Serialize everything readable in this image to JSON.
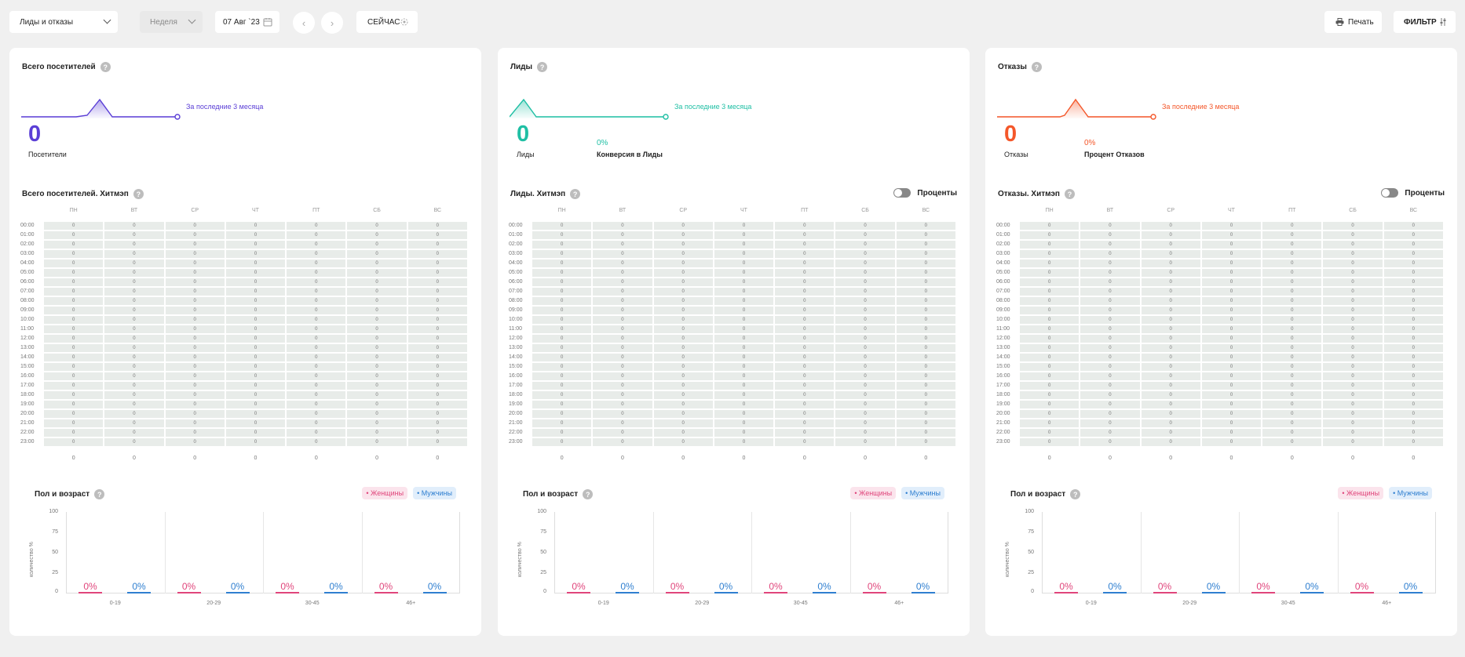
{
  "toolbar": {
    "report_select": "Лиды и отказы",
    "period_select": "Неделя",
    "date": "07 Авг `23",
    "prev": "‹",
    "next": "›",
    "now": "СЕЙЧАС",
    "print": "Печать",
    "filter": "ФИЛЬТР"
  },
  "days": [
    "ПН",
    "ВТ",
    "СР",
    "ЧТ",
    "ПТ",
    "СБ",
    "ВС"
  ],
  "hours": [
    "00:00",
    "01:00",
    "02:00",
    "03:00",
    "04:00",
    "05:00",
    "06:00",
    "07:00",
    "08:00",
    "09:00",
    "10:00",
    "11:00",
    "12:00",
    "13:00",
    "14:00",
    "15:00",
    "16:00",
    "17:00",
    "18:00",
    "19:00",
    "20:00",
    "21:00",
    "22:00",
    "23:00"
  ],
  "cell_value": "0",
  "day_totals": [
    "0",
    "0",
    "0",
    "0",
    "0",
    "0",
    "0"
  ],
  "sex_age": {
    "title": "Пол и возраст",
    "legend_female": "• Женщины",
    "legend_male": "• Мужчины",
    "ylabel": "количество %",
    "yticks": [
      "100",
      "75",
      "50",
      "25",
      "0"
    ],
    "groups": [
      "0-19",
      "20-29",
      "30-45",
      "46+"
    ],
    "female_values": [
      "0%",
      "0%",
      "0%",
      "0%"
    ],
    "male_values": [
      "0%",
      "0%",
      "0%",
      "0%"
    ]
  },
  "panels": [
    {
      "title": "Всего посетителей",
      "accent": "#5b3fd6",
      "spark_label": "За последние 3 месяца",
      "big": "0",
      "big_label": "Посетители",
      "pct": "",
      "pct_label": "",
      "heatmap_title": "Всего посетителей. Хитмэп",
      "toggle_label": ""
    },
    {
      "title": "Лиды",
      "accent": "#1fbfa4",
      "spark_label": "За последние 3 месяца",
      "big": "0",
      "big_label": "Лиды",
      "pct": "0%",
      "pct_label": "Конверсия в Лиды",
      "heatmap_title": "Лиды. Хитмэп",
      "toggle_label": "Проценты"
    },
    {
      "title": "Отказы",
      "accent": "#f4572a",
      "spark_label": "За последние 3 месяца",
      "big": "0",
      "big_label": "Отказы",
      "pct": "0%",
      "pct_label": "Процент Отказов",
      "heatmap_title": "Отказы. Хитмэп",
      "toggle_label": "Проценты"
    }
  ]
}
